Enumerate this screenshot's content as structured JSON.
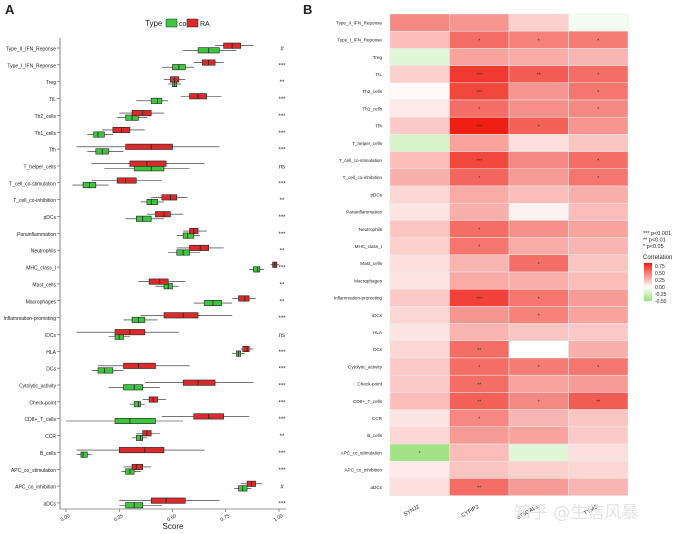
{
  "panel_a_letter": "A",
  "panel_b_letter": "B",
  "watermark": "知乎 @生信风暴",
  "colors": {
    "con": "#3ec43e",
    "ra": "#d92b2b",
    "heat_low": "#99e07a",
    "heat_mid": "#ffffff",
    "heat_high": "#ee1f14"
  },
  "chart_data": [
    {
      "type": "boxplot",
      "legend": {
        "title": "Type",
        "entries": [
          "con",
          "RA"
        ],
        "placement": "top"
      },
      "xlabel": "Score",
      "xticks": [
        "0.00",
        "0.25",
        "0.50",
        "0.75",
        "1.00"
      ],
      "xlim": [
        0,
        1
      ],
      "categories": [
        "Type_II_IFN_Reponse",
        "Type_I_IFN_Reponse",
        "Treg",
        "TIL",
        "Th2_cells",
        "Th1_cells",
        "Tfh",
        "T_helper_cells",
        "T_cell_co-stimulation",
        "T_cell_co-inhibition",
        "pDCs",
        "Parainflammation",
        "Neutrophils",
        "MHC_class_I",
        "Mast_cells",
        "Macrophages",
        "Inflammation-promoting",
        "iDCs",
        "HLA",
        "DCs",
        "Cytolytic_activity",
        "Check-point",
        "CD8+_T_cells",
        "CCR",
        "B_cells",
        "APC_co_stimulation",
        "APC_co_inhibition",
        "aDCs"
      ],
      "significance": [
        "#",
        "***",
        "**",
        "***",
        "***",
        "***",
        "***",
        "ns",
        "***",
        "**",
        "***",
        "***",
        "**",
        "***",
        "**",
        "**",
        "***",
        "ns",
        "***",
        "***",
        "***",
        "***",
        "***",
        "**",
        "***",
        "***",
        "#",
        "***"
      ],
      "series": [
        {
          "name": "con",
          "boxes": [
            [
              0.55,
              0.62,
              0.67,
              0.72,
              0.8
            ],
            [
              0.45,
              0.5,
              0.53,
              0.56,
              0.6
            ],
            [
              0.48,
              0.5,
              0.51,
              0.52,
              0.54
            ],
            [
              0.33,
              0.4,
              0.43,
              0.45,
              0.48
            ],
            [
              0.24,
              0.28,
              0.31,
              0.34,
              0.38
            ],
            [
              0.1,
              0.13,
              0.15,
              0.18,
              0.22
            ],
            [
              0.1,
              0.14,
              0.17,
              0.2,
              0.27
            ],
            [
              0.18,
              0.32,
              0.4,
              0.46,
              0.58
            ],
            [
              0.03,
              0.08,
              0.11,
              0.14,
              0.2
            ],
            [
              0.35,
              0.38,
              0.4,
              0.43,
              0.46
            ],
            [
              0.28,
              0.33,
              0.36,
              0.4,
              0.46
            ],
            [
              0.52,
              0.55,
              0.57,
              0.6,
              0.63
            ],
            [
              0.48,
              0.52,
              0.55,
              0.58,
              0.63
            ],
            [
              0.86,
              0.88,
              0.9,
              0.91,
              0.93
            ],
            [
              0.42,
              0.46,
              0.48,
              0.5,
              0.53
            ],
            [
              0.6,
              0.65,
              0.69,
              0.73,
              0.78
            ],
            [
              0.27,
              0.31,
              0.34,
              0.37,
              0.43
            ],
            [
              0.2,
              0.23,
              0.25,
              0.27,
              0.3
            ],
            [
              0.78,
              0.8,
              0.81,
              0.82,
              0.84
            ],
            [
              0.12,
              0.15,
              0.18,
              0.22,
              0.27
            ],
            [
              0.2,
              0.27,
              0.32,
              0.36,
              0.44
            ],
            [
              0.3,
              0.32,
              0.34,
              0.35,
              0.37
            ],
            [
              0.0,
              0.23,
              0.3,
              0.42,
              0.55
            ],
            [
              0.31,
              0.33,
              0.35,
              0.36,
              0.38
            ],
            [
              0.05,
              0.07,
              0.08,
              0.1,
              0.12
            ],
            [
              0.26,
              0.28,
              0.3,
              0.32,
              0.35
            ],
            [
              0.79,
              0.81,
              0.83,
              0.85,
              0.87
            ],
            [
              0.25,
              0.28,
              0.32,
              0.36,
              0.45
            ]
          ]
        },
        {
          "name": "RA",
          "boxes": [
            [
              0.7,
              0.74,
              0.78,
              0.82,
              0.88
            ],
            [
              0.6,
              0.64,
              0.67,
              0.7,
              0.74
            ],
            [
              0.46,
              0.49,
              0.51,
              0.53,
              0.56
            ],
            [
              0.54,
              0.58,
              0.62,
              0.66,
              0.73
            ],
            [
              0.25,
              0.31,
              0.36,
              0.4,
              0.46
            ],
            [
              0.17,
              0.22,
              0.26,
              0.3,
              0.37
            ],
            [
              0.05,
              0.28,
              0.4,
              0.5,
              0.72
            ],
            [
              0.12,
              0.3,
              0.38,
              0.47,
              0.65
            ],
            [
              0.12,
              0.24,
              0.28,
              0.33,
              0.45
            ],
            [
              0.4,
              0.45,
              0.49,
              0.52,
              0.57
            ],
            [
              0.38,
              0.42,
              0.46,
              0.49,
              0.55
            ],
            [
              0.55,
              0.58,
              0.6,
              0.62,
              0.66
            ],
            [
              0.52,
              0.58,
              0.63,
              0.67,
              0.74
            ],
            [
              0.96,
              0.97,
              0.98,
              0.99,
              1.0
            ],
            [
              0.34,
              0.39,
              0.44,
              0.48,
              0.56
            ],
            [
              0.78,
              0.81,
              0.84,
              0.86,
              0.89
            ],
            [
              0.35,
              0.46,
              0.55,
              0.62,
              0.78
            ],
            [
              0.05,
              0.23,
              0.3,
              0.37,
              0.53
            ],
            [
              0.82,
              0.83,
              0.85,
              0.86,
              0.88
            ],
            [
              0.15,
              0.27,
              0.34,
              0.42,
              0.58
            ],
            [
              0.37,
              0.55,
              0.62,
              0.7,
              0.88
            ],
            [
              0.36,
              0.39,
              0.41,
              0.43,
              0.47
            ],
            [
              0.45,
              0.6,
              0.67,
              0.74,
              0.86
            ],
            [
              0.33,
              0.36,
              0.38,
              0.4,
              0.44
            ],
            [
              0.05,
              0.25,
              0.37,
              0.46,
              0.65
            ],
            [
              0.27,
              0.31,
              0.33,
              0.36,
              0.4
            ],
            [
              0.82,
              0.85,
              0.87,
              0.89,
              0.92
            ],
            [
              0.25,
              0.4,
              0.47,
              0.56,
              0.72
            ]
          ]
        }
      ]
    },
    {
      "type": "heatmap",
      "rows": [
        "Type_II_IFN_Reponse",
        "Type_I_IFN_Reponse",
        "Treg",
        "TIL",
        "Th2_cells",
        "Th1_cells",
        "Tfh",
        "T_helper_cells",
        "T_cell_co-stimulation",
        "T_cell_co-inhibition",
        "pDCs",
        "Parainflammation",
        "Neutrophils",
        "MHC_class_I",
        "Mast_cells",
        "Macrophages",
        "Inflammation-promoting",
        "iDCs",
        "HLA",
        "DCs",
        "Cytolytic_activity",
        "Check-point",
        "CD8+_T_cells",
        "CCR",
        "B_cells",
        "APC_co_stimulation",
        "APC_co_inhibition",
        "aDCs"
      ],
      "columns": [
        "SYNJ2",
        "CYFIP2",
        "ST6GAL1",
        "TYMS"
      ],
      "legend": {
        "title": "Correlation",
        "ticks": [
          "0.75",
          "0.50",
          "0.25",
          "0.00",
          "-0.25",
          "-0.50"
        ],
        "range": [
          -0.5,
          0.85
        ]
      },
      "significance_key": [
        "*** p<0.001",
        "** p<0.01",
        "* p<0.05"
      ],
      "values": [
        [
          0.45,
          0.4,
          0.18,
          -0.05
        ],
        [
          0.25,
          0.55,
          0.48,
          0.5
        ],
        [
          -0.15,
          0.35,
          0.32,
          0.28
        ],
        [
          0.18,
          0.75,
          0.62,
          0.55
        ],
        [
          0.02,
          0.7,
          0.4,
          0.52
        ],
        [
          0.08,
          0.55,
          0.42,
          0.45
        ],
        [
          0.2,
          0.85,
          0.6,
          0.4
        ],
        [
          -0.2,
          0.35,
          0.12,
          0.22
        ],
        [
          0.25,
          0.7,
          0.45,
          0.55
        ],
        [
          0.3,
          0.58,
          0.38,
          0.52
        ],
        [
          0.15,
          0.32,
          0.25,
          0.3
        ],
        [
          0.1,
          0.3,
          0.05,
          0.25
        ],
        [
          0.22,
          0.55,
          0.42,
          0.35
        ],
        [
          0.18,
          0.52,
          0.32,
          0.28
        ],
        [
          0.12,
          0.28,
          0.55,
          0.22
        ],
        [
          0.1,
          0.32,
          0.3,
          0.25
        ],
        [
          0.2,
          0.72,
          0.52,
          0.38
        ],
        [
          0.15,
          0.4,
          0.48,
          0.35
        ],
        [
          0.1,
          0.28,
          0.22,
          0.2
        ],
        [
          0.15,
          0.55,
          0.0,
          0.3
        ],
        [
          0.2,
          0.55,
          0.5,
          0.52
        ],
        [
          0.2,
          0.55,
          0.35,
          0.38
        ],
        [
          0.25,
          0.6,
          0.45,
          0.62
        ],
        [
          0.1,
          0.45,
          0.28,
          0.22
        ],
        [
          0.15,
          0.38,
          0.35,
          0.2
        ],
        [
          -0.45,
          0.25,
          -0.15,
          0.12
        ],
        [
          0.08,
          0.22,
          0.18,
          0.15
        ],
        [
          0.12,
          0.55,
          0.38,
          0.28
        ]
      ],
      "stars": [
        [
          "",
          "",
          "",
          ""
        ],
        [
          "",
          "*",
          "*",
          "*"
        ],
        [
          "",
          "",
          "",
          ""
        ],
        [
          "",
          "***",
          "**",
          "*"
        ],
        [
          "",
          "***",
          "",
          "*"
        ],
        [
          "",
          "*",
          "",
          "*"
        ],
        [
          "",
          "***",
          "*",
          ""
        ],
        [
          "",
          "",
          "",
          ""
        ],
        [
          "",
          "***",
          "",
          "*"
        ],
        [
          "",
          "*",
          "",
          "*"
        ],
        [
          "",
          "",
          "",
          ""
        ],
        [
          "",
          "",
          "",
          ""
        ],
        [
          "",
          "*",
          "",
          ""
        ],
        [
          "",
          "*",
          "",
          ""
        ],
        [
          "",
          "",
          "*",
          ""
        ],
        [
          "",
          "",
          "",
          ""
        ],
        [
          "",
          "***",
          "*",
          ""
        ],
        [
          "",
          "",
          "*",
          ""
        ],
        [
          "",
          "",
          "",
          ""
        ],
        [
          "",
          "**",
          "",
          ""
        ],
        [
          "",
          "*",
          "*",
          "*"
        ],
        [
          "",
          "**",
          "",
          ""
        ],
        [
          "",
          "**",
          "*",
          "**"
        ],
        [
          "",
          "*",
          "",
          ""
        ],
        [
          "",
          "",
          "",
          ""
        ],
        [
          "*",
          "",
          "",
          ""
        ],
        [
          "",
          "",
          "",
          ""
        ],
        [
          "",
          "**",
          "",
          ""
        ]
      ]
    }
  ]
}
